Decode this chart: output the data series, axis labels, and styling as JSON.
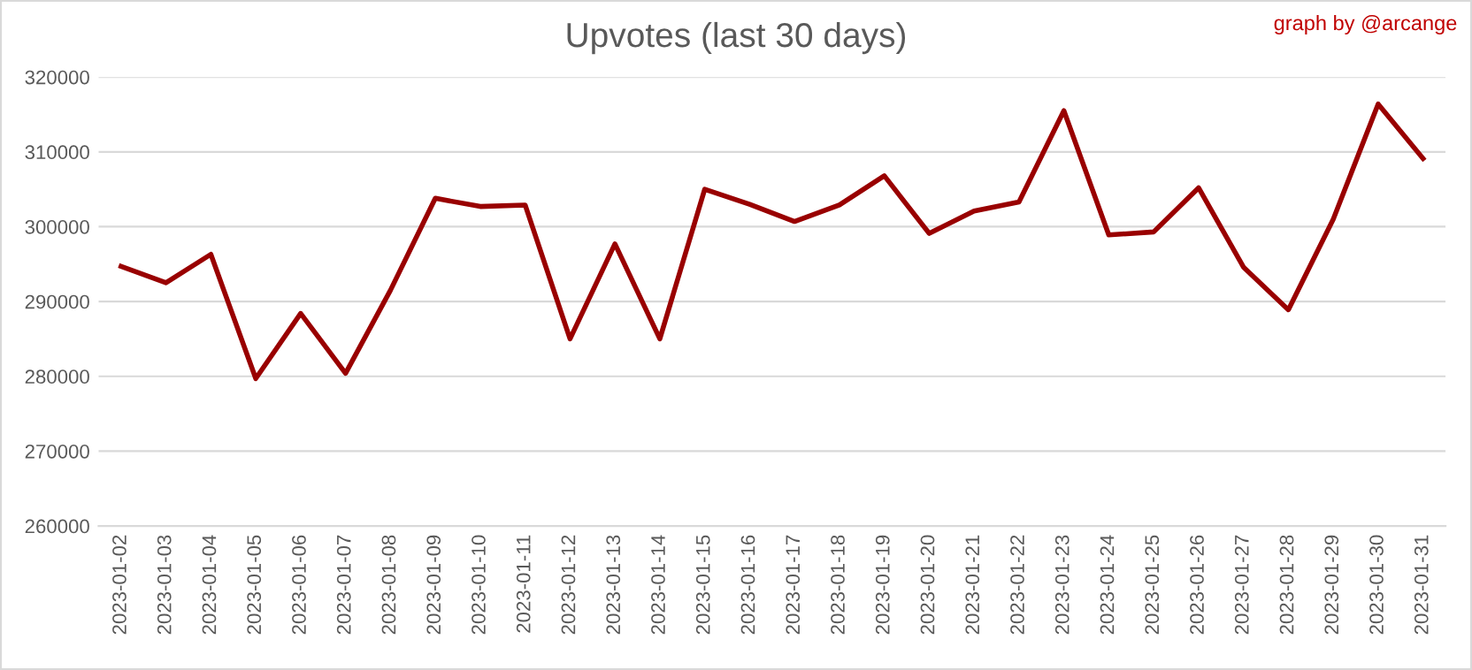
{
  "chart_data": {
    "type": "line",
    "title": "Upvotes (last 30 days)",
    "annotations": [
      "graph by @arcange"
    ],
    "categories": [
      "2023-01-02",
      "2023-01-03",
      "2023-01-04",
      "2023-01-05",
      "2023-01-06",
      "2023-01-07",
      "2023-01-08",
      "2023-01-09",
      "2023-01-10",
      "2023-01-11",
      "2023-01-12",
      "2023-01-13",
      "2023-01-14",
      "2023-01-15",
      "2023-01-16",
      "2023-01-17",
      "2023-01-18",
      "2023-01-19",
      "2023-01-20",
      "2023-01-21",
      "2023-01-22",
      "2023-01-23",
      "2023-01-24",
      "2023-01-25",
      "2023-01-26",
      "2023-01-27",
      "2023-01-28",
      "2023-01-29",
      "2023-01-30",
      "2023-01-31"
    ],
    "series": [
      {
        "color": "#990000",
        "values": [
          294700,
          292500,
          296300,
          279700,
          288400,
          280400,
          291500,
          303800,
          302700,
          302900,
          285000,
          297700,
          285000,
          305000,
          303000,
          300700,
          302900,
          306800,
          299100,
          302100,
          303300,
          315500,
          298900,
          299300,
          305200,
          294600,
          288900,
          301000,
          316400,
          309100
        ]
      }
    ],
    "ylim": [
      260000,
      320000
    ],
    "yticks": [
      260000,
      270000,
      280000,
      290000,
      300000,
      310000,
      320000
    ],
    "grid": "y",
    "legend": false,
    "marker": "none",
    "line_style": "solid"
  }
}
